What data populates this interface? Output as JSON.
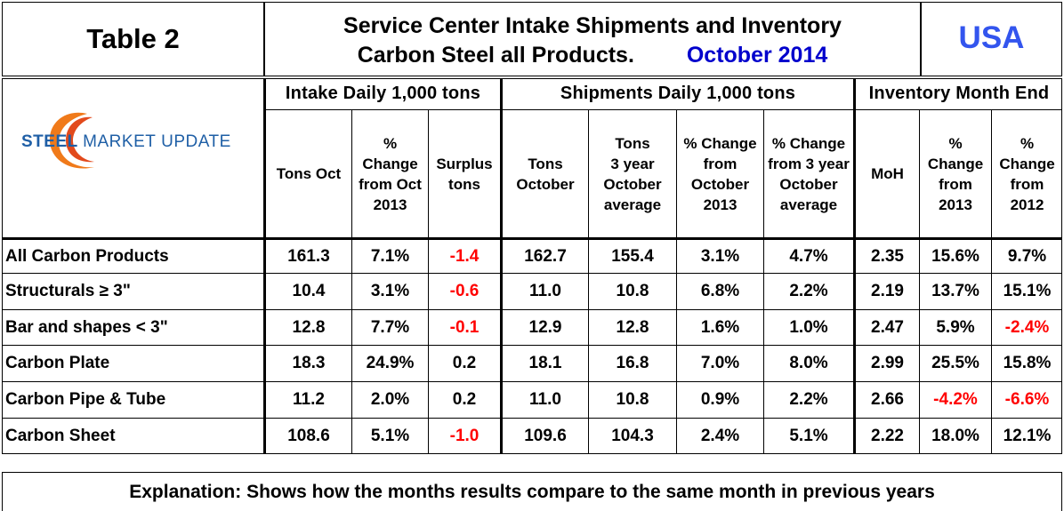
{
  "header": {
    "table_label": "Table 2",
    "title_line1": "Service Center Intake Shipments and Inventory",
    "title_line2": "Carbon Steel all Products.",
    "period": "October 2014",
    "region": "USA"
  },
  "logo": {
    "word1": "STEEL",
    "word2": "MARKET",
    "word3": "UPDATE"
  },
  "groups": {
    "intake": "Intake Daily 1,000 tons",
    "shipments": "Shipments Daily 1,000 tons",
    "inventory": "Inventory Month End"
  },
  "columns": [
    [
      "Tons Oct"
    ],
    [
      "%",
      "Change",
      "from Oct",
      "2013"
    ],
    [
      "Surplus",
      "tons"
    ],
    [
      "Tons",
      "October"
    ],
    [
      "Tons",
      "3 year",
      "October",
      "average"
    ],
    [
      "% Change",
      "from",
      "October",
      "2013"
    ],
    [
      "% Change",
      "from 3 year",
      "October",
      "average"
    ],
    [
      "MoH"
    ],
    [
      "%",
      "Change",
      "from",
      "2013"
    ],
    [
      "%",
      "Change",
      "from",
      "2012"
    ]
  ],
  "rows": [
    {
      "label": "All Carbon Products",
      "values": [
        "161.3",
        "7.1%",
        "-1.4",
        "162.7",
        "155.4",
        "3.1%",
        "4.7%",
        "2.35",
        "15.6%",
        "9.7%"
      ]
    },
    {
      "label": "Structurals ≥ 3\"",
      "values": [
        "10.4",
        "3.1%",
        "-0.6",
        "11.0",
        "10.8",
        "6.8%",
        "2.2%",
        "2.19",
        "13.7%",
        "15.1%"
      ]
    },
    {
      "label": "Bar and shapes < 3\"",
      "values": [
        "12.8",
        "7.7%",
        "-0.1",
        "12.9",
        "12.8",
        "1.6%",
        "1.0%",
        "2.47",
        "5.9%",
        "-2.4%"
      ]
    },
    {
      "label": "Carbon Plate",
      "values": [
        "18.3",
        "24.9%",
        "0.2",
        "18.1",
        "16.8",
        "7.0%",
        "8.0%",
        "2.99",
        "25.5%",
        "15.8%"
      ]
    },
    {
      "label": "Carbon Pipe & Tube",
      "values": [
        "11.2",
        "2.0%",
        "0.2",
        "11.0",
        "10.8",
        "0.9%",
        "2.2%",
        "2.66",
        "-4.2%",
        "-6.6%"
      ]
    },
    {
      "label": "Carbon Sheet",
      "values": [
        "108.6",
        "5.1%",
        "-1.0",
        "109.6",
        "104.3",
        "2.4%",
        "5.1%",
        "2.22",
        "18.0%",
        "12.1%"
      ]
    }
  ],
  "footer": {
    "explanation": "Explanation: Shows how the months results compare to the same month in previous years"
  },
  "colors": {
    "period": "#0000cc",
    "region": "#3355ee",
    "negative": "#ff0000",
    "logo_blue": "#1f5fa6",
    "logo_orange": "#f07a1a"
  }
}
